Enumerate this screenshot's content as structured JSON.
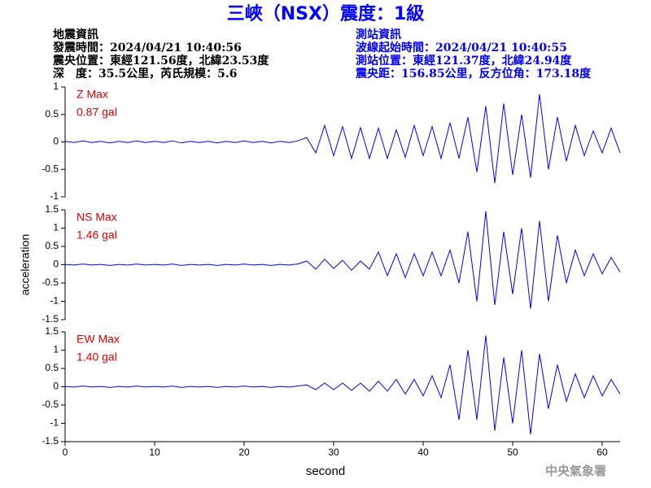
{
  "title": "三峽（NSX）震度：1級",
  "header": {
    "left": [
      "地震資訊",
      "發震時間：2024/04/21 10:40:56",
      "震央位置：東經121.56度，北緯23.53度",
      "深　度：35.5公里，芮氏規模：5.6"
    ],
    "right": [
      "測站資訊",
      "波線起始時間：2024/04/21 10:40:55",
      "測站位置：東經121.37度，北緯24.94度",
      "震央距：156.85公里，反方位角：173.18度"
    ]
  },
  "footer": "中央氣象署",
  "chart_data": [
    {
      "type": "line",
      "annotation": [
        "Z Max",
        "0.87 gal"
      ],
      "xlim": [
        0,
        62
      ],
      "ylim": [
        -1,
        1
      ],
      "yticks": [
        -1,
        -0.5,
        0,
        0.5,
        1
      ],
      "x": [
        0,
        1,
        2,
        3,
        4,
        5,
        6,
        7,
        8,
        9,
        10,
        11,
        12,
        13,
        14,
        15,
        16,
        17,
        18,
        19,
        20,
        21,
        22,
        23,
        24,
        25,
        26,
        27,
        28,
        29,
        30,
        31,
        32,
        33,
        34,
        35,
        36,
        37,
        38,
        39,
        40,
        41,
        42,
        43,
        44,
        45,
        46,
        47,
        48,
        49,
        50,
        51,
        52,
        53,
        54,
        55,
        56,
        57,
        58,
        59,
        60,
        61,
        62
      ],
      "series": [
        {
          "color": "#0000ff",
          "values": [
            0.01,
            -0.01,
            0.02,
            -0.01,
            0.01,
            -0.02,
            0.01,
            -0.01,
            0.02,
            -0.01,
            0.01,
            -0.01,
            0.02,
            -0.02,
            0.01,
            -0.01,
            0.01,
            -0.02,
            0.01,
            -0.01,
            0.02,
            -0.01,
            0.01,
            -0.02,
            0.01,
            -0.01,
            0.02,
            0.08,
            -0.2,
            0.3,
            -0.25,
            0.28,
            -0.3,
            0.26,
            -0.3,
            0.25,
            -0.3,
            0.22,
            -0.28,
            0.3,
            -0.25,
            0.28,
            -0.3,
            0.35,
            -0.3,
            0.45,
            -0.55,
            0.65,
            -0.75,
            0.7,
            -0.6,
            0.5,
            -0.65,
            0.87,
            -0.5,
            0.45,
            -0.35,
            0.3,
            -0.25,
            0.2,
            -0.2,
            0.25,
            -0.2
          ]
        }
      ]
    },
    {
      "type": "line",
      "annotation": [
        "NS Max",
        "1.46 gal"
      ],
      "ylabel": "acceleration",
      "xlim": [
        0,
        62
      ],
      "ylim": [
        -1.5,
        1.5
      ],
      "yticks": [
        -1.5,
        -1,
        -0.5,
        0,
        0.5,
        1,
        1.5
      ],
      "x": [
        0,
        1,
        2,
        3,
        4,
        5,
        6,
        7,
        8,
        9,
        10,
        11,
        12,
        13,
        14,
        15,
        16,
        17,
        18,
        19,
        20,
        21,
        22,
        23,
        24,
        25,
        26,
        27,
        28,
        29,
        30,
        31,
        32,
        33,
        34,
        35,
        36,
        37,
        38,
        39,
        40,
        41,
        42,
        43,
        44,
        45,
        46,
        47,
        48,
        49,
        50,
        51,
        52,
        53,
        54,
        55,
        56,
        57,
        58,
        59,
        60,
        61,
        62
      ],
      "series": [
        {
          "color": "#0000ff",
          "values": [
            0.01,
            -0.01,
            0.02,
            -0.01,
            0.01,
            -0.02,
            0.01,
            -0.01,
            0.02,
            -0.01,
            0.01,
            -0.01,
            0.02,
            -0.02,
            0.01,
            -0.01,
            0.01,
            -0.02,
            0.01,
            -0.01,
            0.02,
            -0.01,
            0.01,
            -0.02,
            0.01,
            -0.01,
            0.02,
            0.1,
            -0.12,
            0.15,
            -0.1,
            0.12,
            -0.15,
            0.1,
            -0.12,
            0.35,
            -0.3,
            0.3,
            -0.35,
            0.3,
            -0.3,
            0.35,
            -0.3,
            0.4,
            -0.5,
            0.9,
            -1.0,
            1.46,
            -1.1,
            0.9,
            -0.8,
            1.0,
            -1.2,
            1.2,
            -1.0,
            0.8,
            -0.5,
            0.4,
            -0.3,
            0.3,
            -0.25,
            0.2,
            -0.2
          ]
        }
      ]
    },
    {
      "type": "line",
      "annotation": [
        "EW Max",
        "1.40 gal"
      ],
      "xlabel": "second",
      "xlim": [
        0,
        62
      ],
      "xticks": [
        0,
        10,
        20,
        30,
        40,
        50,
        60
      ],
      "ylim": [
        -1.5,
        1.5
      ],
      "yticks": [
        -1.5,
        -1,
        -0.5,
        0,
        0.5,
        1,
        1.5
      ],
      "x": [
        0,
        1,
        2,
        3,
        4,
        5,
        6,
        7,
        8,
        9,
        10,
        11,
        12,
        13,
        14,
        15,
        16,
        17,
        18,
        19,
        20,
        21,
        22,
        23,
        24,
        25,
        26,
        27,
        28,
        29,
        30,
        31,
        32,
        33,
        34,
        35,
        36,
        37,
        38,
        39,
        40,
        41,
        42,
        43,
        44,
        45,
        46,
        47,
        48,
        49,
        50,
        51,
        52,
        53,
        54,
        55,
        56,
        57,
        58,
        59,
        60,
        61,
        62
      ],
      "series": [
        {
          "color": "#0000ff",
          "values": [
            0.01,
            -0.01,
            0.02,
            -0.01,
            0.01,
            -0.02,
            0.01,
            -0.01,
            0.02,
            -0.01,
            0.01,
            -0.01,
            0.02,
            -0.02,
            0.01,
            -0.01,
            0.01,
            -0.02,
            0.01,
            -0.01,
            0.02,
            -0.01,
            0.01,
            -0.02,
            0.01,
            -0.01,
            0.02,
            0.05,
            -0.08,
            0.1,
            -0.08,
            0.1,
            -0.1,
            0.1,
            -0.12,
            0.15,
            -0.12,
            0.2,
            -0.2,
            0.2,
            -0.25,
            0.3,
            -0.3,
            0.6,
            -0.9,
            1.0,
            -0.9,
            1.4,
            -1.2,
            0.8,
            -1.0,
            1.0,
            -1.3,
            0.9,
            -0.6,
            0.6,
            -0.4,
            0.35,
            -0.3,
            0.3,
            -0.25,
            0.2,
            -0.2
          ]
        }
      ]
    }
  ]
}
